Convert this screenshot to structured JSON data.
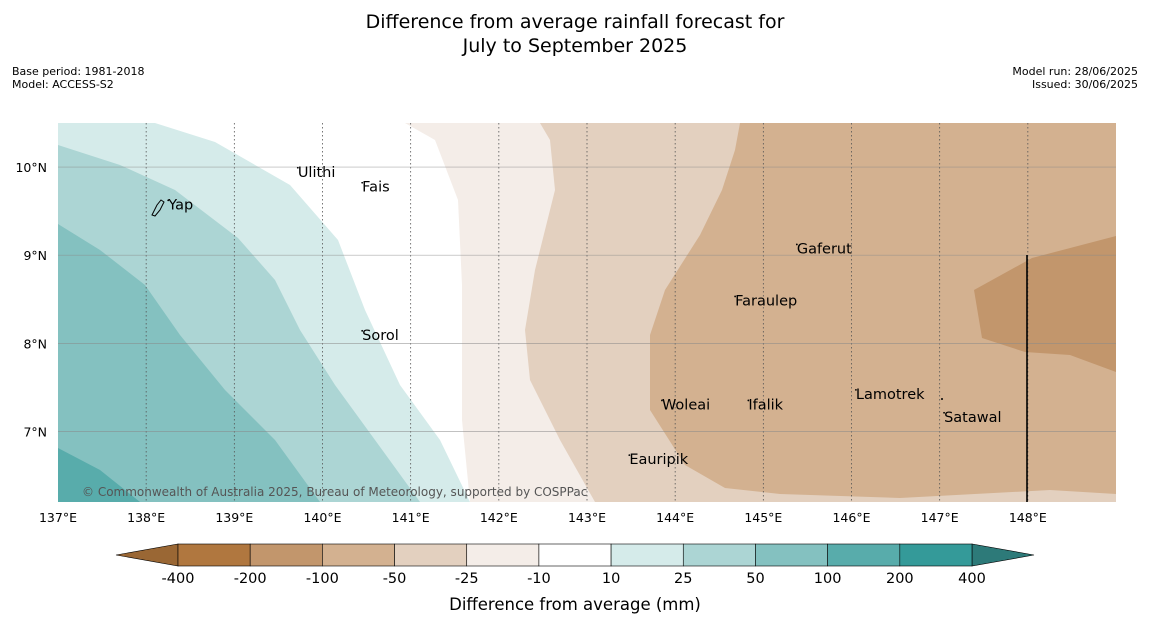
{
  "title_line1": "Difference from average rainfall forecast for",
  "title_line2": "July to September 2025",
  "meta_left": [
    "Base period: 1981-2018",
    "Model: ACCESS-S2"
  ],
  "meta_right": [
    "Model run: 28/06/2025",
    "Issued: 30/06/2025"
  ],
  "copyright": "© Commonwealth of Australia 2025, Bureau of Meteorology, supported by COSPPac",
  "map_extent": {
    "lon": [
      137,
      149
    ],
    "lat": [
      6.2,
      10.5
    ]
  },
  "lon_ticks": [
    {
      "value": 137,
      "label": "137°E"
    },
    {
      "value": 138,
      "label": "138°E"
    },
    {
      "value": 139,
      "label": "139°E"
    },
    {
      "value": 140,
      "label": "140°E"
    },
    {
      "value": 141,
      "label": "141°E"
    },
    {
      "value": 142,
      "label": "142°E"
    },
    {
      "value": 143,
      "label": "143°E"
    },
    {
      "value": 144,
      "label": "144°E"
    },
    {
      "value": 145,
      "label": "145°E"
    },
    {
      "value": 146,
      "label": "146°E"
    },
    {
      "value": 147,
      "label": "147°E"
    },
    {
      "value": 148,
      "label": "148°E"
    }
  ],
  "lat_ticks": [
    {
      "value": 10,
      "label": "10°N"
    },
    {
      "value": 9,
      "label": "9°N"
    },
    {
      "value": 8,
      "label": "8°N"
    },
    {
      "value": 7,
      "label": "7°N"
    }
  ],
  "places": [
    {
      "name": "Ulithi",
      "lon": 139.72,
      "lat": 9.89
    },
    {
      "name": "Fais",
      "lon": 140.45,
      "lat": 9.72
    },
    {
      "name": "Yap",
      "lon": 138.25,
      "lat": 9.52
    },
    {
      "name": "Gaferut",
      "lon": 145.38,
      "lat": 9.02
    },
    {
      "name": "Faraulep",
      "lon": 144.68,
      "lat": 8.43
    },
    {
      "name": "Sorol",
      "lon": 140.45,
      "lat": 8.04
    },
    {
      "name": "Lamotrek",
      "lon": 146.05,
      "lat": 7.37
    },
    {
      "name": "Woleai",
      "lon": 143.85,
      "lat": 7.25
    },
    {
      "name": "Ifalik",
      "lon": 144.83,
      "lat": 7.25
    },
    {
      "name": "Satawal",
      "lon": 147.05,
      "lat": 7.11
    },
    {
      "name": "Eauripik",
      "lon": 143.48,
      "lat": 6.63
    }
  ],
  "colorbar": {
    "title": "Difference from average (mm)",
    "labels": [
      "-400",
      "-200",
      "-100",
      "-50",
      "-25",
      "-10",
      "10",
      "25",
      "50",
      "100",
      "200",
      "400"
    ],
    "colors": [
      "#b0773f",
      "#c2966c",
      "#d3b190",
      "#e3d0bf",
      "#f4ede8",
      "#ffffff",
      "#d5ebea",
      "#acd5d4",
      "#84c1c0",
      "#58acab",
      "#349a99"
    ],
    "extend_low_color": "#9a6734",
    "extend_high_color": "#2d7a79"
  },
  "contour_colors": {
    "c400": "#b0773f",
    "c200": "#c2966c",
    "c100": "#d3b190",
    "c50": "#e3d0bf",
    "c25": "#f4ede8",
    "w10": "#d5ebea",
    "w25": "#acd5d4",
    "w50": "#84c1c0",
    "w100": "#58acab"
  }
}
